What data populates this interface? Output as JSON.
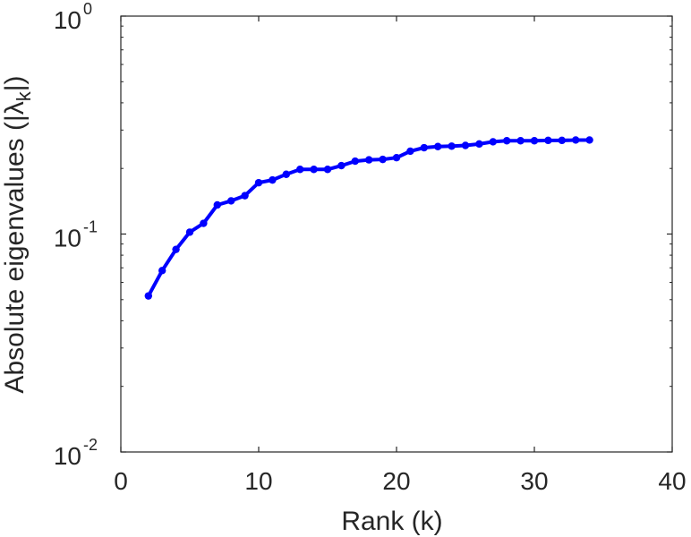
{
  "chart_data": {
    "type": "line",
    "xlabel": "Rank (k)",
    "ylabel": {
      "before": "Absolute eigenvalues (|",
      "symbol": "λ",
      "subscript": "k",
      "after": "|)"
    },
    "x_ticks": [
      "0",
      "10",
      "20",
      "30",
      "40"
    ],
    "y_ticks": [
      {
        "base": "10",
        "exp": "-2"
      },
      {
        "base": "10",
        "exp": "-1"
      },
      {
        "base": "10",
        "exp": "0"
      }
    ],
    "xlim": [
      0,
      40
    ],
    "ylim": [
      0.01,
      1
    ],
    "y_scale": "log",
    "grid": false,
    "series": [
      {
        "color": "#0000ff",
        "marker": "dot",
        "x": [
          2,
          3,
          4,
          5,
          6,
          7,
          8,
          9,
          10,
          11,
          12,
          13,
          14,
          15,
          16,
          17,
          18,
          19,
          20,
          21,
          22,
          23,
          24,
          25,
          26,
          27,
          28,
          29,
          30,
          31,
          32,
          33,
          34
        ],
        "y": [
          0.052,
          0.068,
          0.085,
          0.102,
          0.112,
          0.136,
          0.142,
          0.15,
          0.172,
          0.177,
          0.188,
          0.198,
          0.198,
          0.198,
          0.206,
          0.216,
          0.219,
          0.22,
          0.224,
          0.24,
          0.249,
          0.252,
          0.253,
          0.255,
          0.259,
          0.265,
          0.268,
          0.268,
          0.268,
          0.269,
          0.269,
          0.27,
          0.27
        ]
      }
    ]
  }
}
